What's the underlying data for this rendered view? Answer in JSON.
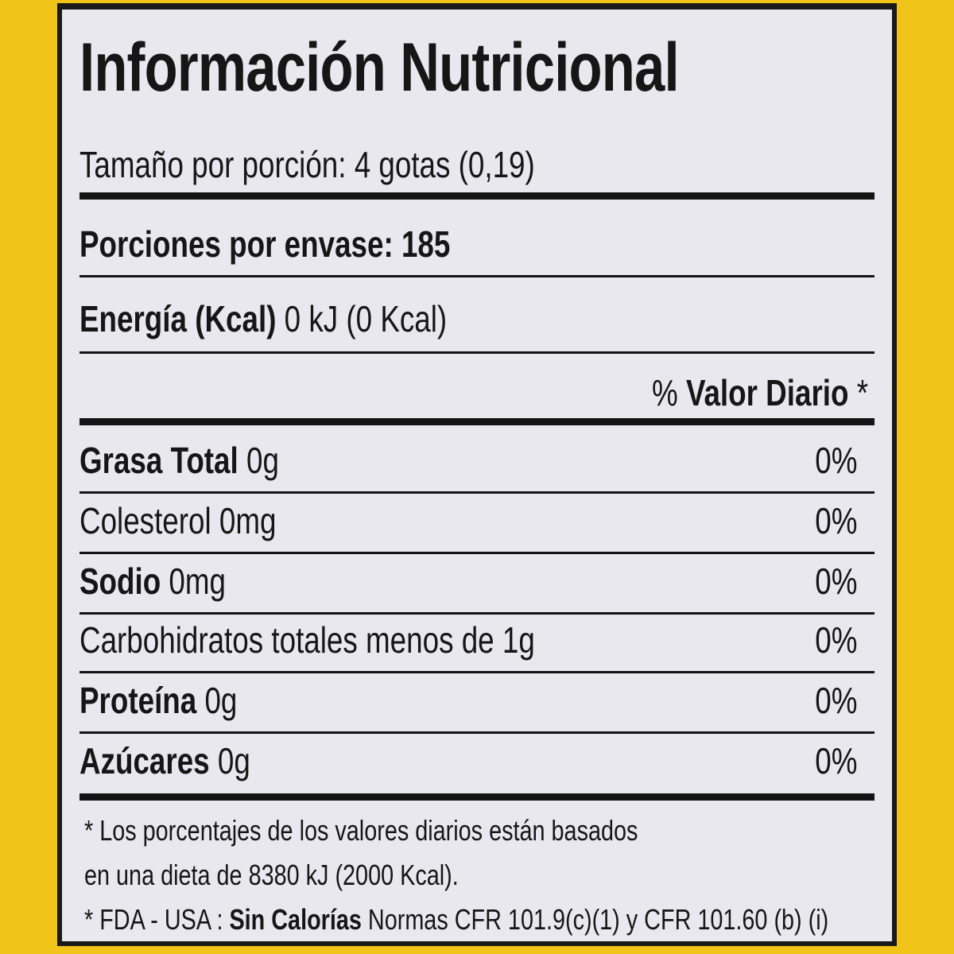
{
  "label": {
    "title": "Información Nutricional",
    "serving_size": "Tamaño por porción: 4 gotas (0,19)",
    "servings_per_container": "Porciones por envase: 185",
    "energy_label": "Energía (Kcal)",
    "energy_value": " 0 kJ (0 Kcal)",
    "daily_value_header_pct": "% ",
    "daily_value_header": "Valor Diario",
    "daily_value_header_star": " *",
    "nutrients": [
      {
        "name": "Grasa Total",
        "amount": " 0g",
        "dv": "0%",
        "bold": true
      },
      {
        "name": "Colesterol",
        "amount": " 0mg",
        "dv": "0%",
        "bold": false
      },
      {
        "name": "Sodio",
        "amount": " 0mg",
        "dv": "0%",
        "bold": true
      },
      {
        "name": "Carbohidratos totales",
        "amount": " menos de 1g",
        "dv": "0%",
        "bold": false
      },
      {
        "name": "Proteína",
        "amount": " 0g",
        "dv": "0%",
        "bold": true
      },
      {
        "name": "Azúcares",
        "amount": " 0g",
        "dv": "0%",
        "bold": true
      }
    ],
    "footnote_1": "* Los porcentajes de los valores diarios están basados",
    "footnote_2": "en una dieta de 8380 kJ (2000 Kcal).",
    "footnote_3_prefix": "* FDA - USA : ",
    "footnote_3_bold": "Sin Calorías",
    "footnote_3_suffix": " Normas CFR 101.9(c)(1) y CFR 101.60 (b) (i)"
  },
  "colors": {
    "border": "#f0c419",
    "panel": "#e9e8ef",
    "ink": "#161616"
  }
}
